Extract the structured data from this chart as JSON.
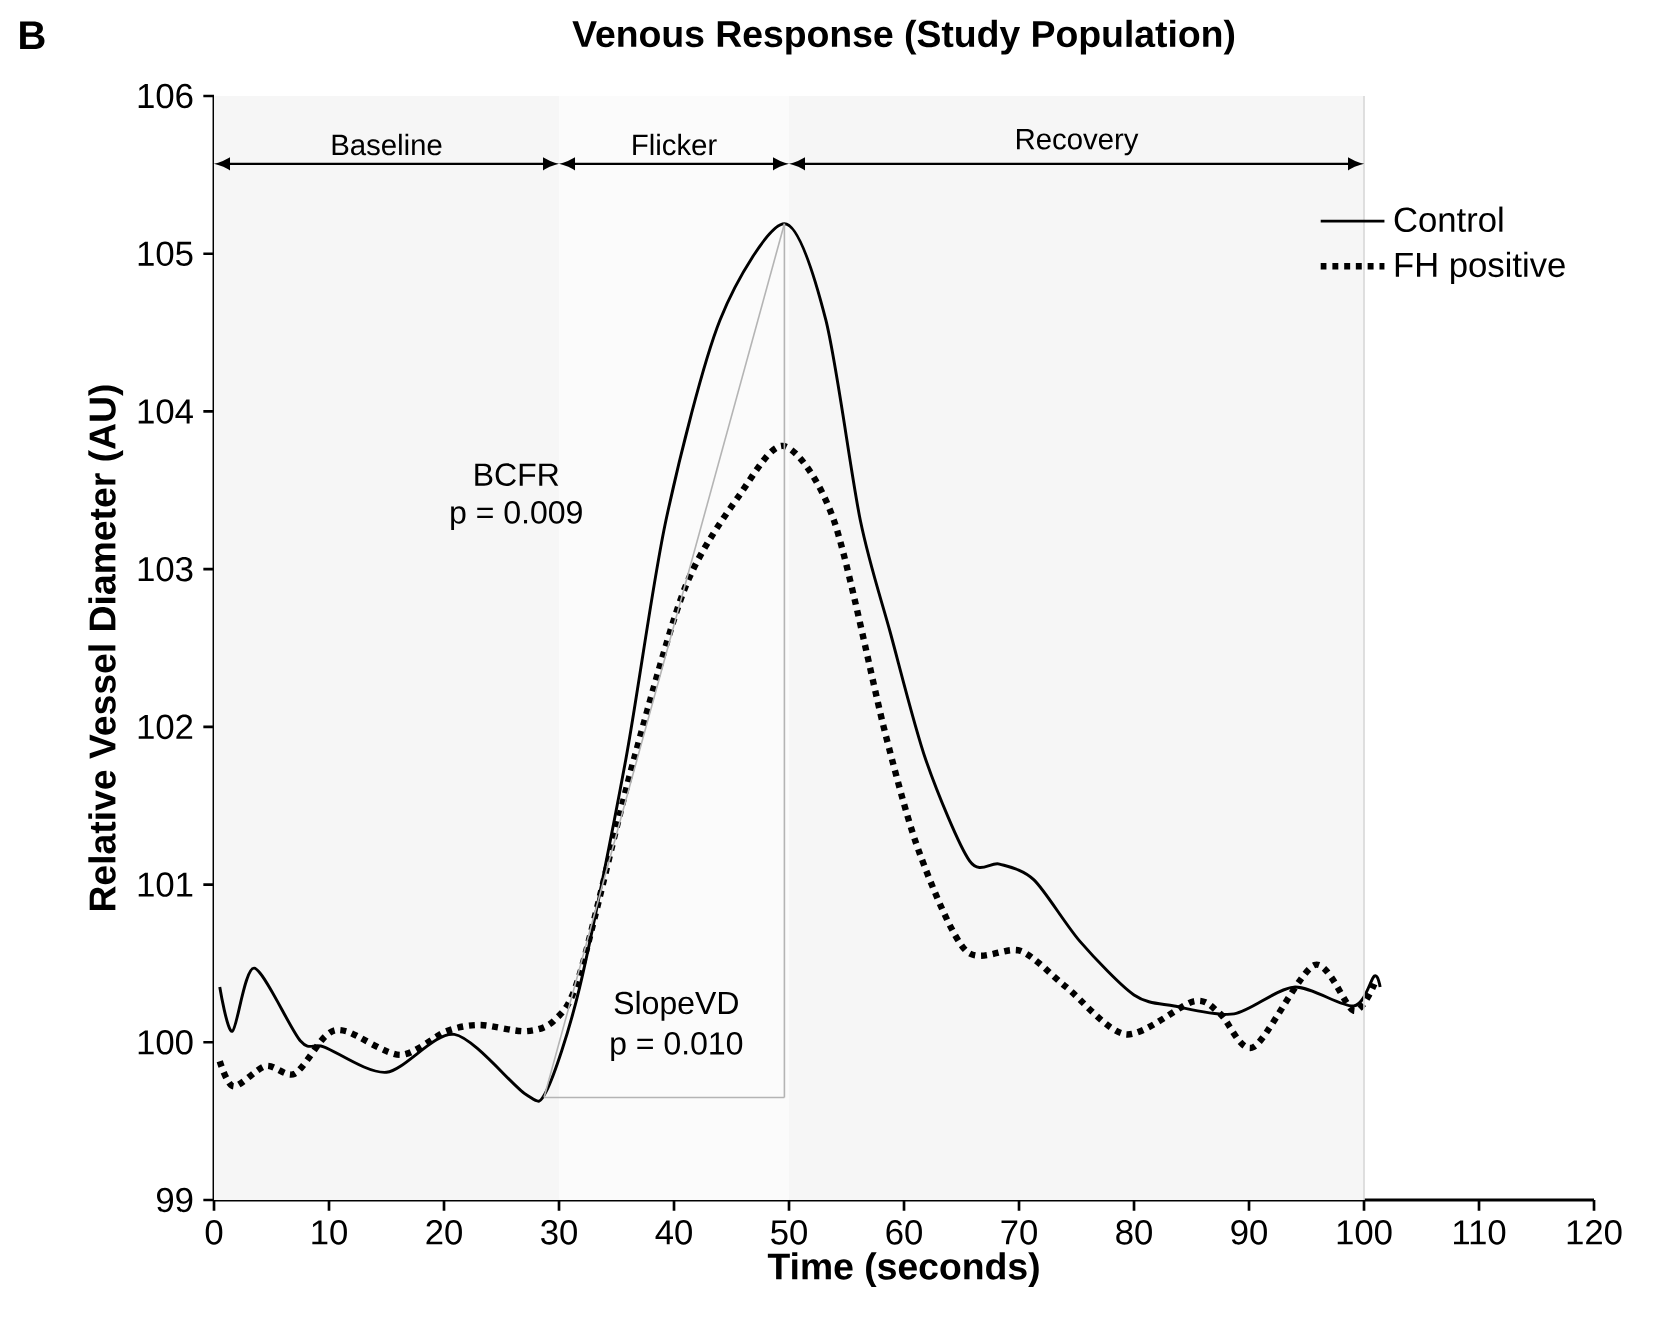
{
  "chart_data": {
    "type": "line",
    "title": "Venous Response (Study Population)",
    "xlabel": "Time (seconds)",
    "ylabel": "Relative Vessel Diameter (AU)",
    "xlim": [
      0,
      120
    ],
    "ylim": [
      99,
      106
    ],
    "xticks": [
      0,
      10,
      20,
      30,
      40,
      50,
      60,
      70,
      80,
      90,
      100,
      110,
      120
    ],
    "yticks": [
      99,
      100,
      101,
      102,
      103,
      104,
      105,
      106
    ],
    "grid": false,
    "legend": "top right",
    "marker": "none",
    "series": [
      {
        "name": "Control",
        "color": "#000000",
        "line_style": "solid",
        "x": [
          0.5,
          1.6,
          3.5,
          7.5,
          9.6,
          15,
          20.9,
          27.1,
          28.9,
          31.8,
          35.8,
          39.3,
          44,
          49.6,
          53.2,
          56.2,
          58.8,
          61.9,
          65.7,
          68.3,
          71.3,
          75.3,
          80,
          83.5,
          88.7,
          93.9,
          99.1,
          100.9,
          101.4
        ],
        "values": [
          100.35,
          100.07,
          100.47,
          100.01,
          99.97,
          99.81,
          100.05,
          99.67,
          99.69,
          100.35,
          101.79,
          103.31,
          104.58,
          105.19,
          104.58,
          103.31,
          102.6,
          101.79,
          101.15,
          101.13,
          101.03,
          100.64,
          100.3,
          100.23,
          100.18,
          100.35,
          100.23,
          100.42,
          100.35
        ]
      },
      {
        "name": "FH positive",
        "color": "#000000",
        "line_style": "dotted",
        "x": [
          0.5,
          1.7,
          4.5,
          7,
          9.7,
          11.5,
          16.2,
          20.2,
          23.1,
          27.1,
          29.6,
          31.8,
          36.5,
          41,
          45.7,
          49.6,
          53.9,
          58.4,
          61.4,
          65.4,
          70.1,
          74.1,
          79.3,
          85.2,
          87.5,
          90.4,
          95.7,
          99.1,
          100.9
        ],
        "values": [
          99.88,
          99.72,
          99.85,
          99.8,
          100.04,
          100.07,
          99.92,
          100.07,
          100.11,
          100.07,
          100.14,
          100.43,
          101.79,
          102.89,
          103.47,
          103.78,
          103.31,
          101.95,
          101.19,
          100.58,
          100.58,
          100.35,
          100.05,
          100.26,
          100.18,
          99.97,
          100.49,
          100.2,
          100.37
        ]
      },
      {
        "color": "#b4b4b4",
        "line_style": "solid",
        "x": [
          28.7,
          49.6
        ],
        "values": [
          99.65,
          105.19
        ]
      },
      {
        "color": "#b4b4b4",
        "line_style": "solid",
        "x": [
          28.7,
          49.6
        ],
        "values": [
          99.65,
          99.65
        ]
      },
      {
        "color": "#b4b4b4",
        "line_style": "solid",
        "x": [
          49.6,
          49.6
        ],
        "values": [
          99.65,
          105.19
        ]
      }
    ],
    "ref_lines": [
      {
        "axis": "x",
        "value": 100,
        "color": "#d8d8d8"
      }
    ],
    "bands": [
      {
        "axis": "x",
        "from": 0,
        "to": 30,
        "label": "Baseline",
        "color": "#f6f6f6"
      },
      {
        "axis": "x",
        "from": 30,
        "to": 50,
        "label": "Flicker",
        "color": "#fbfbfb"
      },
      {
        "axis": "x",
        "from": 50,
        "to": 100,
        "label": "Recovery",
        "color": "#f6f6f6"
      }
    ],
    "annotations": [
      "B",
      "BCFR",
      "p = 0.009",
      "SlopeVD",
      "p = 0.010"
    ]
  }
}
